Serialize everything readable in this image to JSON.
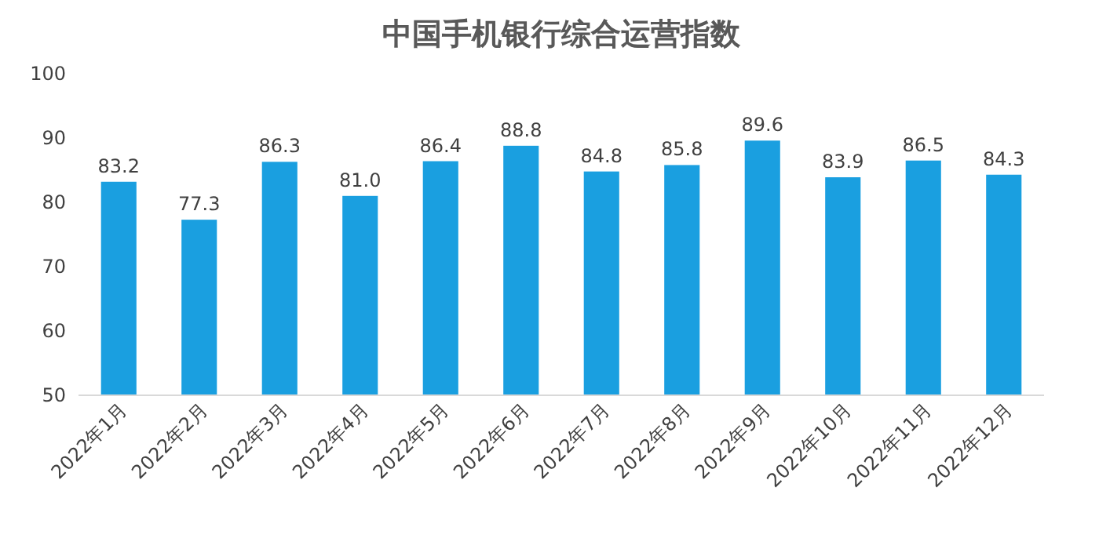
{
  "chart_data": {
    "type": "bar",
    "title": "中国手机银行综合运营指数",
    "categories": [
      "2022年1月",
      "2022年2月",
      "2022年3月",
      "2022年4月",
      "2022年5月",
      "2022年6月",
      "2022年7月",
      "2022年8月",
      "2022年9月",
      "2022年10月",
      "2022年11月",
      "2022年12月"
    ],
    "values": [
      83.2,
      77.3,
      86.3,
      81.0,
      86.4,
      88.8,
      84.8,
      85.8,
      89.6,
      83.9,
      86.5,
      84.3
    ],
    "value_labels": [
      "83.2",
      "77.3",
      "86.3",
      "81.0",
      "86.4",
      "88.8",
      "84.8",
      "85.8",
      "89.6",
      "83.9",
      "86.5",
      "84.3"
    ],
    "color": "#1a9fe0",
    "ylim": [
      50,
      100
    ],
    "yticks": [
      50,
      60,
      70,
      80,
      90,
      100
    ],
    "grid": false
  }
}
